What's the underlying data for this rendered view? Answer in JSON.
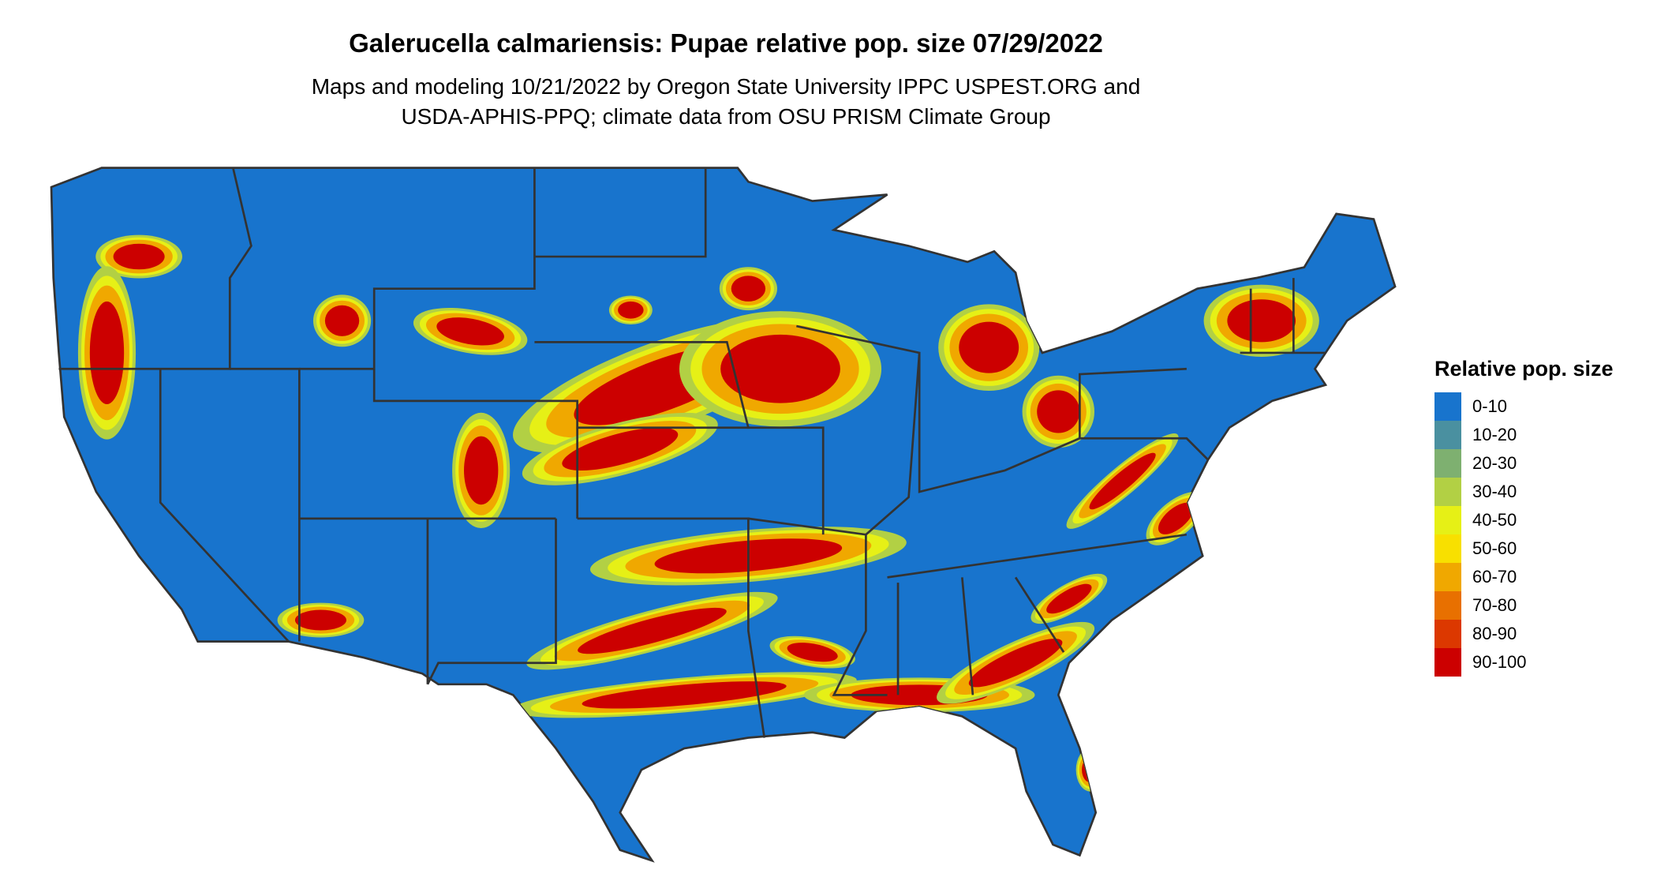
{
  "title": "Galerucella calmariensis: Pupae relative pop. size 07/29/2022",
  "subtitle_lines": [
    "Maps and modeling 10/21/2022 by Oregon State University IPPC USPEST.ORG and",
    "USDA-APHIS-PPQ; climate data from OSU PRISM Climate Group"
  ],
  "legend": {
    "title": "Relative pop. size",
    "items": [
      {
        "label": "0-10",
        "color": "#1874CD"
      },
      {
        "label": "10-20",
        "color": "#4A90A0"
      },
      {
        "label": "20-30",
        "color": "#7EB070"
      },
      {
        "label": "30-40",
        "color": "#B2D044"
      },
      {
        "label": "40-50",
        "color": "#E6F016"
      },
      {
        "label": "50-60",
        "color": "#F8E000"
      },
      {
        "label": "60-70",
        "color": "#F0A800"
      },
      {
        "label": "70-80",
        "color": "#E87000"
      },
      {
        "label": "80-90",
        "color": "#DC3800"
      },
      {
        "label": "90-100",
        "color": "#CC0000"
      }
    ]
  },
  "map": {
    "boundary_color": "#333333"
  }
}
